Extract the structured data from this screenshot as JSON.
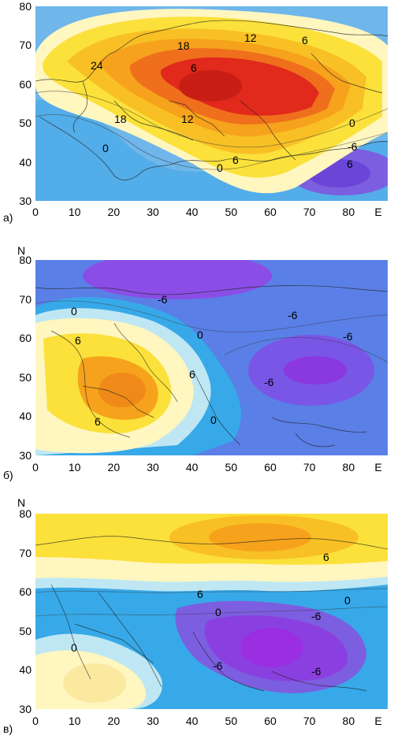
{
  "panels": [
    {
      "label": "а)",
      "y_axis_title": "",
      "x_ticks": [
        "0",
        "10",
        "20",
        "30",
        "40",
        "50",
        "60",
        "70",
        "80",
        "E"
      ],
      "y_ticks": [
        "80",
        "70",
        "60",
        "50",
        "40",
        "30"
      ],
      "contour_labels": [
        "18",
        "12",
        "24",
        "6",
        "18",
        "12",
        "6",
        "0",
        "6",
        "0",
        "-6",
        "0",
        "6"
      ],
      "colors": {
        "bg": "#6fb6ea",
        "mid": "#fff6c0",
        "warm": "#fbe13a",
        "orange": "#f6a21c",
        "red": "#e1291c",
        "neg": "#7c5ee0"
      }
    },
    {
      "label": "б)",
      "y_axis_title": "N",
      "x_ticks": [
        "0",
        "10",
        "20",
        "30",
        "40",
        "50",
        "60",
        "70",
        "80",
        "E"
      ],
      "y_ticks": [
        "80",
        "70",
        "60",
        "50",
        "40",
        "30"
      ],
      "contour_labels": [
        "-6",
        "0",
        "-6",
        "6",
        "0",
        "-6",
        "6",
        "-6",
        "0",
        "6"
      ],
      "colors": {
        "bg": "#5a7fe6",
        "pos": "#fbe13a",
        "orange": "#f6a21c",
        "neg": "#8a4ee6",
        "light": "#fff6c0"
      }
    },
    {
      "label": "в)",
      "y_axis_title": "N",
      "x_ticks": [
        "0",
        "10",
        "20",
        "30",
        "40",
        "50",
        "60",
        "70",
        "80",
        "E"
      ],
      "y_ticks": [
        "80",
        "70",
        "60",
        "50",
        "40",
        "30"
      ],
      "contour_labels": [
        "6",
        "6",
        "0",
        "0",
        "-6",
        "0",
        "-6",
        "-6"
      ],
      "colors": {
        "bg": "#37a9e8",
        "pos": "#fbe13a",
        "orange": "#f6a21c",
        "neg": "#7a4fe0",
        "light": "#fff6c0"
      }
    }
  ]
}
